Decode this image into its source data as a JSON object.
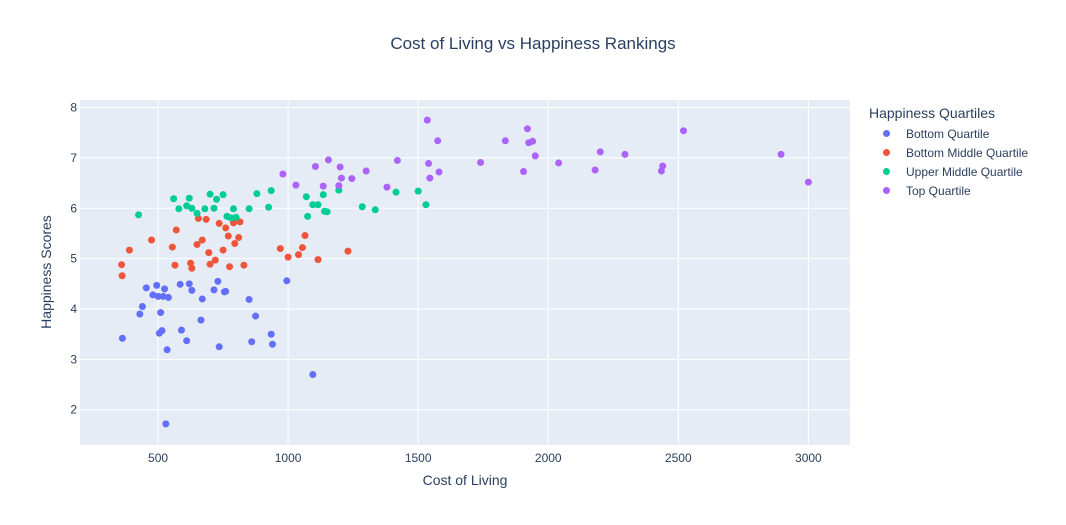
{
  "chart_data": {
    "type": "scatter",
    "title": "Cost of Living vs Happiness Rankings",
    "xlabel": "Cost of Living",
    "ylabel": "Happiness Scores",
    "xlim": [
      200,
      3160
    ],
    "ylim": [
      1.3,
      8.15
    ],
    "xticks": [
      500,
      1000,
      1500,
      2000,
      2500,
      3000
    ],
    "yticks": [
      2,
      3,
      4,
      5,
      6,
      7,
      8
    ],
    "legend_title": "Happiness Quartiles",
    "series": [
      {
        "name": "Bottom Quartile",
        "color": "#636efa",
        "points": [
          [
            363,
            3.42
          ],
          [
            440,
            4.05
          ],
          [
            455,
            4.42
          ],
          [
            430,
            3.9
          ],
          [
            480,
            4.28
          ],
          [
            495,
            4.47
          ],
          [
            500,
            4.25
          ],
          [
            505,
            3.52
          ],
          [
            515,
            3.57
          ],
          [
            510,
            3.93
          ],
          [
            520,
            4.25
          ],
          [
            525,
            4.4
          ],
          [
            530,
            1.72
          ],
          [
            535,
            3.19
          ],
          [
            540,
            4.23
          ],
          [
            585,
            4.49
          ],
          [
            590,
            3.58
          ],
          [
            610,
            3.37
          ],
          [
            620,
            4.5
          ],
          [
            630,
            4.37
          ],
          [
            665,
            3.78
          ],
          [
            670,
            4.2
          ],
          [
            715,
            4.38
          ],
          [
            730,
            4.55
          ],
          [
            735,
            3.25
          ],
          [
            755,
            4.34
          ],
          [
            760,
            4.35
          ],
          [
            850,
            4.19
          ],
          [
            860,
            3.35
          ],
          [
            875,
            3.86
          ],
          [
            935,
            3.5
          ],
          [
            940,
            3.3
          ],
          [
            995,
            4.56
          ],
          [
            1095,
            2.7
          ]
        ]
      },
      {
        "name": "Bottom Middle Quartile",
        "color": "#EF553B",
        "points": [
          [
            360,
            4.88
          ],
          [
            362,
            4.66
          ],
          [
            390,
            5.17
          ],
          [
            475,
            5.37
          ],
          [
            555,
            5.23
          ],
          [
            565,
            4.87
          ],
          [
            570,
            5.57
          ],
          [
            625,
            4.91
          ],
          [
            630,
            4.81
          ],
          [
            650,
            5.28
          ],
          [
            655,
            5.8
          ],
          [
            670,
            5.37
          ],
          [
            685,
            5.78
          ],
          [
            695,
            5.12
          ],
          [
            700,
            4.89
          ],
          [
            720,
            4.97
          ],
          [
            735,
            5.7
          ],
          [
            750,
            5.17
          ],
          [
            760,
            5.61
          ],
          [
            770,
            5.45
          ],
          [
            775,
            4.84
          ],
          [
            790,
            5.71
          ],
          [
            795,
            5.3
          ],
          [
            810,
            5.42
          ],
          [
            815,
            5.73
          ],
          [
            830,
            4.87
          ],
          [
            970,
            5.2
          ],
          [
            1000,
            5.03
          ],
          [
            1040,
            5.08
          ],
          [
            1055,
            5.22
          ],
          [
            1065,
            5.46
          ],
          [
            1115,
            4.98
          ],
          [
            1230,
            5.15
          ]
        ]
      },
      {
        "name": "Upper Middle Quartile",
        "color": "#00cc96",
        "points": [
          [
            425,
            5.87
          ],
          [
            560,
            6.19
          ],
          [
            580,
            5.99
          ],
          [
            610,
            6.05
          ],
          [
            620,
            6.2
          ],
          [
            630,
            6.0
          ],
          [
            650,
            5.9
          ],
          [
            680,
            5.99
          ],
          [
            700,
            6.28
          ],
          [
            715,
            6.0
          ],
          [
            725,
            6.18
          ],
          [
            750,
            6.27
          ],
          [
            765,
            5.84
          ],
          [
            780,
            5.81
          ],
          [
            790,
            5.99
          ],
          [
            800,
            5.82
          ],
          [
            850,
            5.99
          ],
          [
            880,
            6.29
          ],
          [
            925,
            6.02
          ],
          [
            935,
            6.35
          ],
          [
            1070,
            6.23
          ],
          [
            1075,
            5.84
          ],
          [
            1095,
            6.07
          ],
          [
            1115,
            6.07
          ],
          [
            1135,
            6.27
          ],
          [
            1140,
            5.94
          ],
          [
            1150,
            5.93
          ],
          [
            1195,
            6.36
          ],
          [
            1285,
            6.03
          ],
          [
            1335,
            5.97
          ],
          [
            1415,
            6.32
          ],
          [
            1500,
            6.34
          ],
          [
            1530,
            6.07
          ]
        ]
      },
      {
        "name": "Top Quartile",
        "color": "#ab63fa",
        "points": [
          [
            980,
            6.68
          ],
          [
            1030,
            6.46
          ],
          [
            1105,
            6.83
          ],
          [
            1135,
            6.44
          ],
          [
            1155,
            6.96
          ],
          [
            1195,
            6.45
          ],
          [
            1200,
            6.82
          ],
          [
            1205,
            6.6
          ],
          [
            1245,
            6.59
          ],
          [
            1300,
            6.74
          ],
          [
            1380,
            6.42
          ],
          [
            1420,
            6.95
          ],
          [
            1535,
            7.75
          ],
          [
            1540,
            6.89
          ],
          [
            1545,
            6.6
          ],
          [
            1575,
            7.34
          ],
          [
            1580,
            6.72
          ],
          [
            1740,
            6.91
          ],
          [
            1835,
            7.34
          ],
          [
            1905,
            6.73
          ],
          [
            1920,
            7.58
          ],
          [
            1925,
            7.3
          ],
          [
            1940,
            7.33
          ],
          [
            1950,
            7.04
          ],
          [
            2040,
            6.9
          ],
          [
            2180,
            6.76
          ],
          [
            2200,
            7.12
          ],
          [
            2295,
            7.07
          ],
          [
            2435,
            6.74
          ],
          [
            2440,
            6.84
          ],
          [
            2520,
            7.54
          ],
          [
            2895,
            7.07
          ],
          [
            3000,
            6.52
          ]
        ]
      }
    ]
  }
}
